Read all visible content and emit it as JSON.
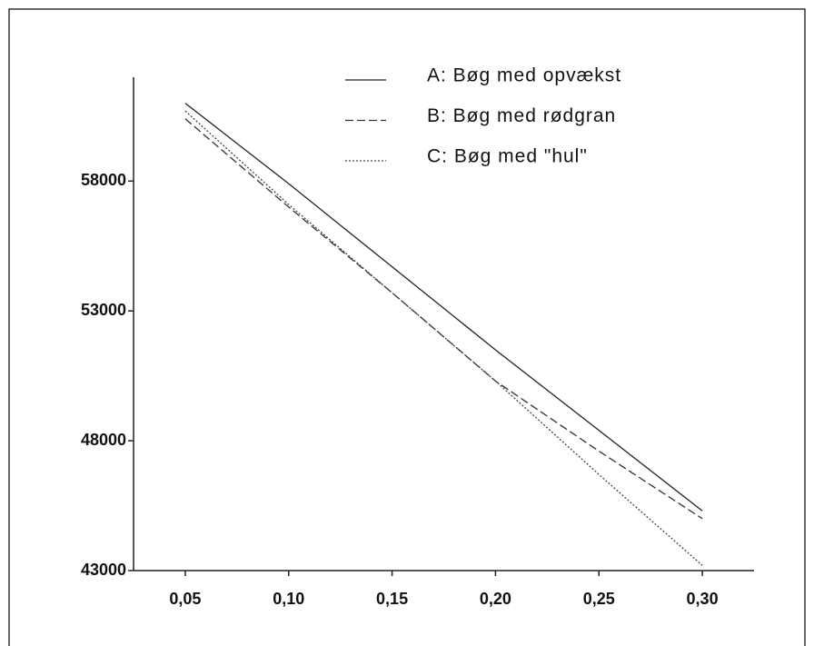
{
  "chart_data": {
    "type": "line",
    "x": [
      0.05,
      0.1,
      0.15,
      0.2,
      0.25,
      0.3
    ],
    "series": [
      {
        "name": "A: Bøg med opvækst",
        "color": "#222222",
        "dash": "none",
        "values": [
          61000,
          57900,
          54700,
          51500,
          48400,
          45300
        ]
      },
      {
        "name": "B: Bøg med rødgran",
        "color": "#333333",
        "dash": "9 4",
        "values": [
          60400,
          57000,
          53700,
          50300,
          47600,
          45000
        ]
      },
      {
        "name": "C: Bøg med \"hul\"",
        "color": "#444444",
        "dash": "2 2",
        "values": [
          60700,
          57100,
          53700,
          50300,
          46700,
          43200
        ]
      }
    ],
    "xlim": [
      0.025,
      0.325
    ],
    "xticks": [
      {
        "value": 0.05,
        "label": "0,05"
      },
      {
        "value": 0.1,
        "label": "0,10"
      },
      {
        "value": 0.15,
        "label": "0,15"
      },
      {
        "value": 0.2,
        "label": "0,20"
      },
      {
        "value": 0.25,
        "label": "0,25"
      },
      {
        "value": 0.3,
        "label": "0,30"
      }
    ],
    "ylim": [
      43000,
      62000
    ],
    "yticks": [
      43000,
      48000,
      53000,
      58000
    ],
    "legend": "top-right"
  }
}
